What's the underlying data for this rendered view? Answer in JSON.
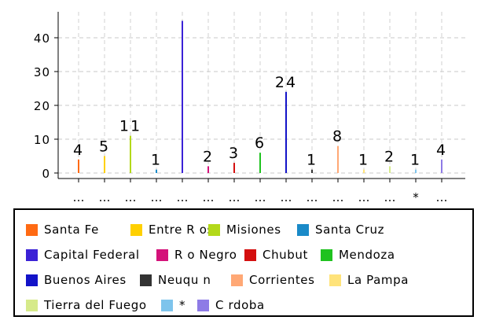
{
  "chart_data": {
    "type": "bar",
    "categories": [
      "…",
      "…",
      "…",
      "…",
      "…",
      "…",
      "…",
      "…",
      "…",
      "…",
      "…",
      "…",
      "…",
      "*",
      "…"
    ],
    "values": [
      4,
      5,
      11,
      1,
      45,
      2,
      3,
      6,
      24,
      1,
      8,
      1,
      2,
      1,
      4
    ],
    "data_labels": [
      "4",
      "5",
      "11",
      "1",
      "",
      "2",
      "3",
      "6",
      "24",
      "1",
      "8",
      "1",
      "2",
      "1",
      "4"
    ],
    "bar_colors": [
      "#ff6a13",
      "#ffd000",
      "#b3d91a",
      "#1a8ac8",
      "#3b22d6",
      "#d4127a",
      "#d40f0f",
      "#1fc21f",
      "#1313c8",
      "#333333",
      "#ffa875",
      "#ffe37a",
      "#d6ea8a",
      "#7ec4ec",
      "#8e7be6"
    ],
    "ylim": [
      0,
      47
    ],
    "yticks": [
      0,
      10,
      20,
      30,
      40
    ],
    "ytick_labels": [
      "0",
      "10",
      "20",
      "30",
      "40"
    ],
    "grid": true,
    "legend_position": "bottom",
    "legend": [
      {
        "label": "Santa Fe",
        "color": "#ff6a13"
      },
      {
        "label": "Entre R os",
        "color": "#ffd000"
      },
      {
        "label": "Misiones",
        "color": "#b3d91a"
      },
      {
        "label": "Santa Cruz",
        "color": "#1a8ac8"
      },
      {
        "label": "Capital Federal",
        "color": "#3b22d6"
      },
      {
        "label": "R o Negro",
        "color": "#d4127a"
      },
      {
        "label": "Chubut",
        "color": "#d40f0f"
      },
      {
        "label": "Mendoza",
        "color": "#1fc21f"
      },
      {
        "label": "Buenos Aires",
        "color": "#1313c8"
      },
      {
        "label": "Neuqu n",
        "color": "#333333"
      },
      {
        "label": "Corrientes",
        "color": "#ffa875"
      },
      {
        "label": "La Pampa",
        "color": "#ffe37a"
      },
      {
        "label": "Tierra del Fuego",
        "color": "#d6ea8a"
      },
      {
        "label": "*",
        "color": "#7ec4ec"
      },
      {
        "label": "C rdoba",
        "color": "#8e7be6"
      }
    ]
  }
}
